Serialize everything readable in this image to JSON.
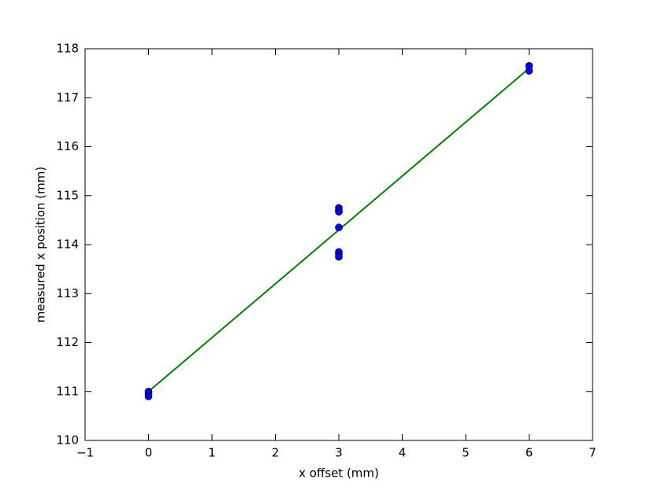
{
  "chart_data": {
    "type": "scatter",
    "xlabel": "x offset (mm)",
    "ylabel": "measured x position (mm)",
    "xlim": [
      -1,
      7
    ],
    "xticks": [
      {
        "value": -1,
        "label": "−1"
      },
      0,
      1,
      2,
      3,
      4,
      5,
      6,
      7
    ],
    "ylim": [
      110,
      118
    ],
    "yticks": [
      110,
      111,
      112,
      113,
      114,
      115,
      116,
      117,
      118
    ],
    "series": [
      {
        "type": "scatter",
        "color": "#0000ff",
        "x": [
          0,
          0,
          0,
          3,
          3,
          3,
          3,
          3,
          3,
          3,
          6,
          6
        ],
        "values": [
          111.0,
          110.95,
          110.9,
          114.75,
          114.7,
          114.67,
          114.35,
          113.85,
          113.8,
          113.75,
          117.65,
          117.55
        ]
      },
      {
        "type": "line",
        "color": "#008000",
        "x": [
          0,
          6
        ],
        "values": [
          111.0,
          117.6
        ]
      }
    ]
  }
}
